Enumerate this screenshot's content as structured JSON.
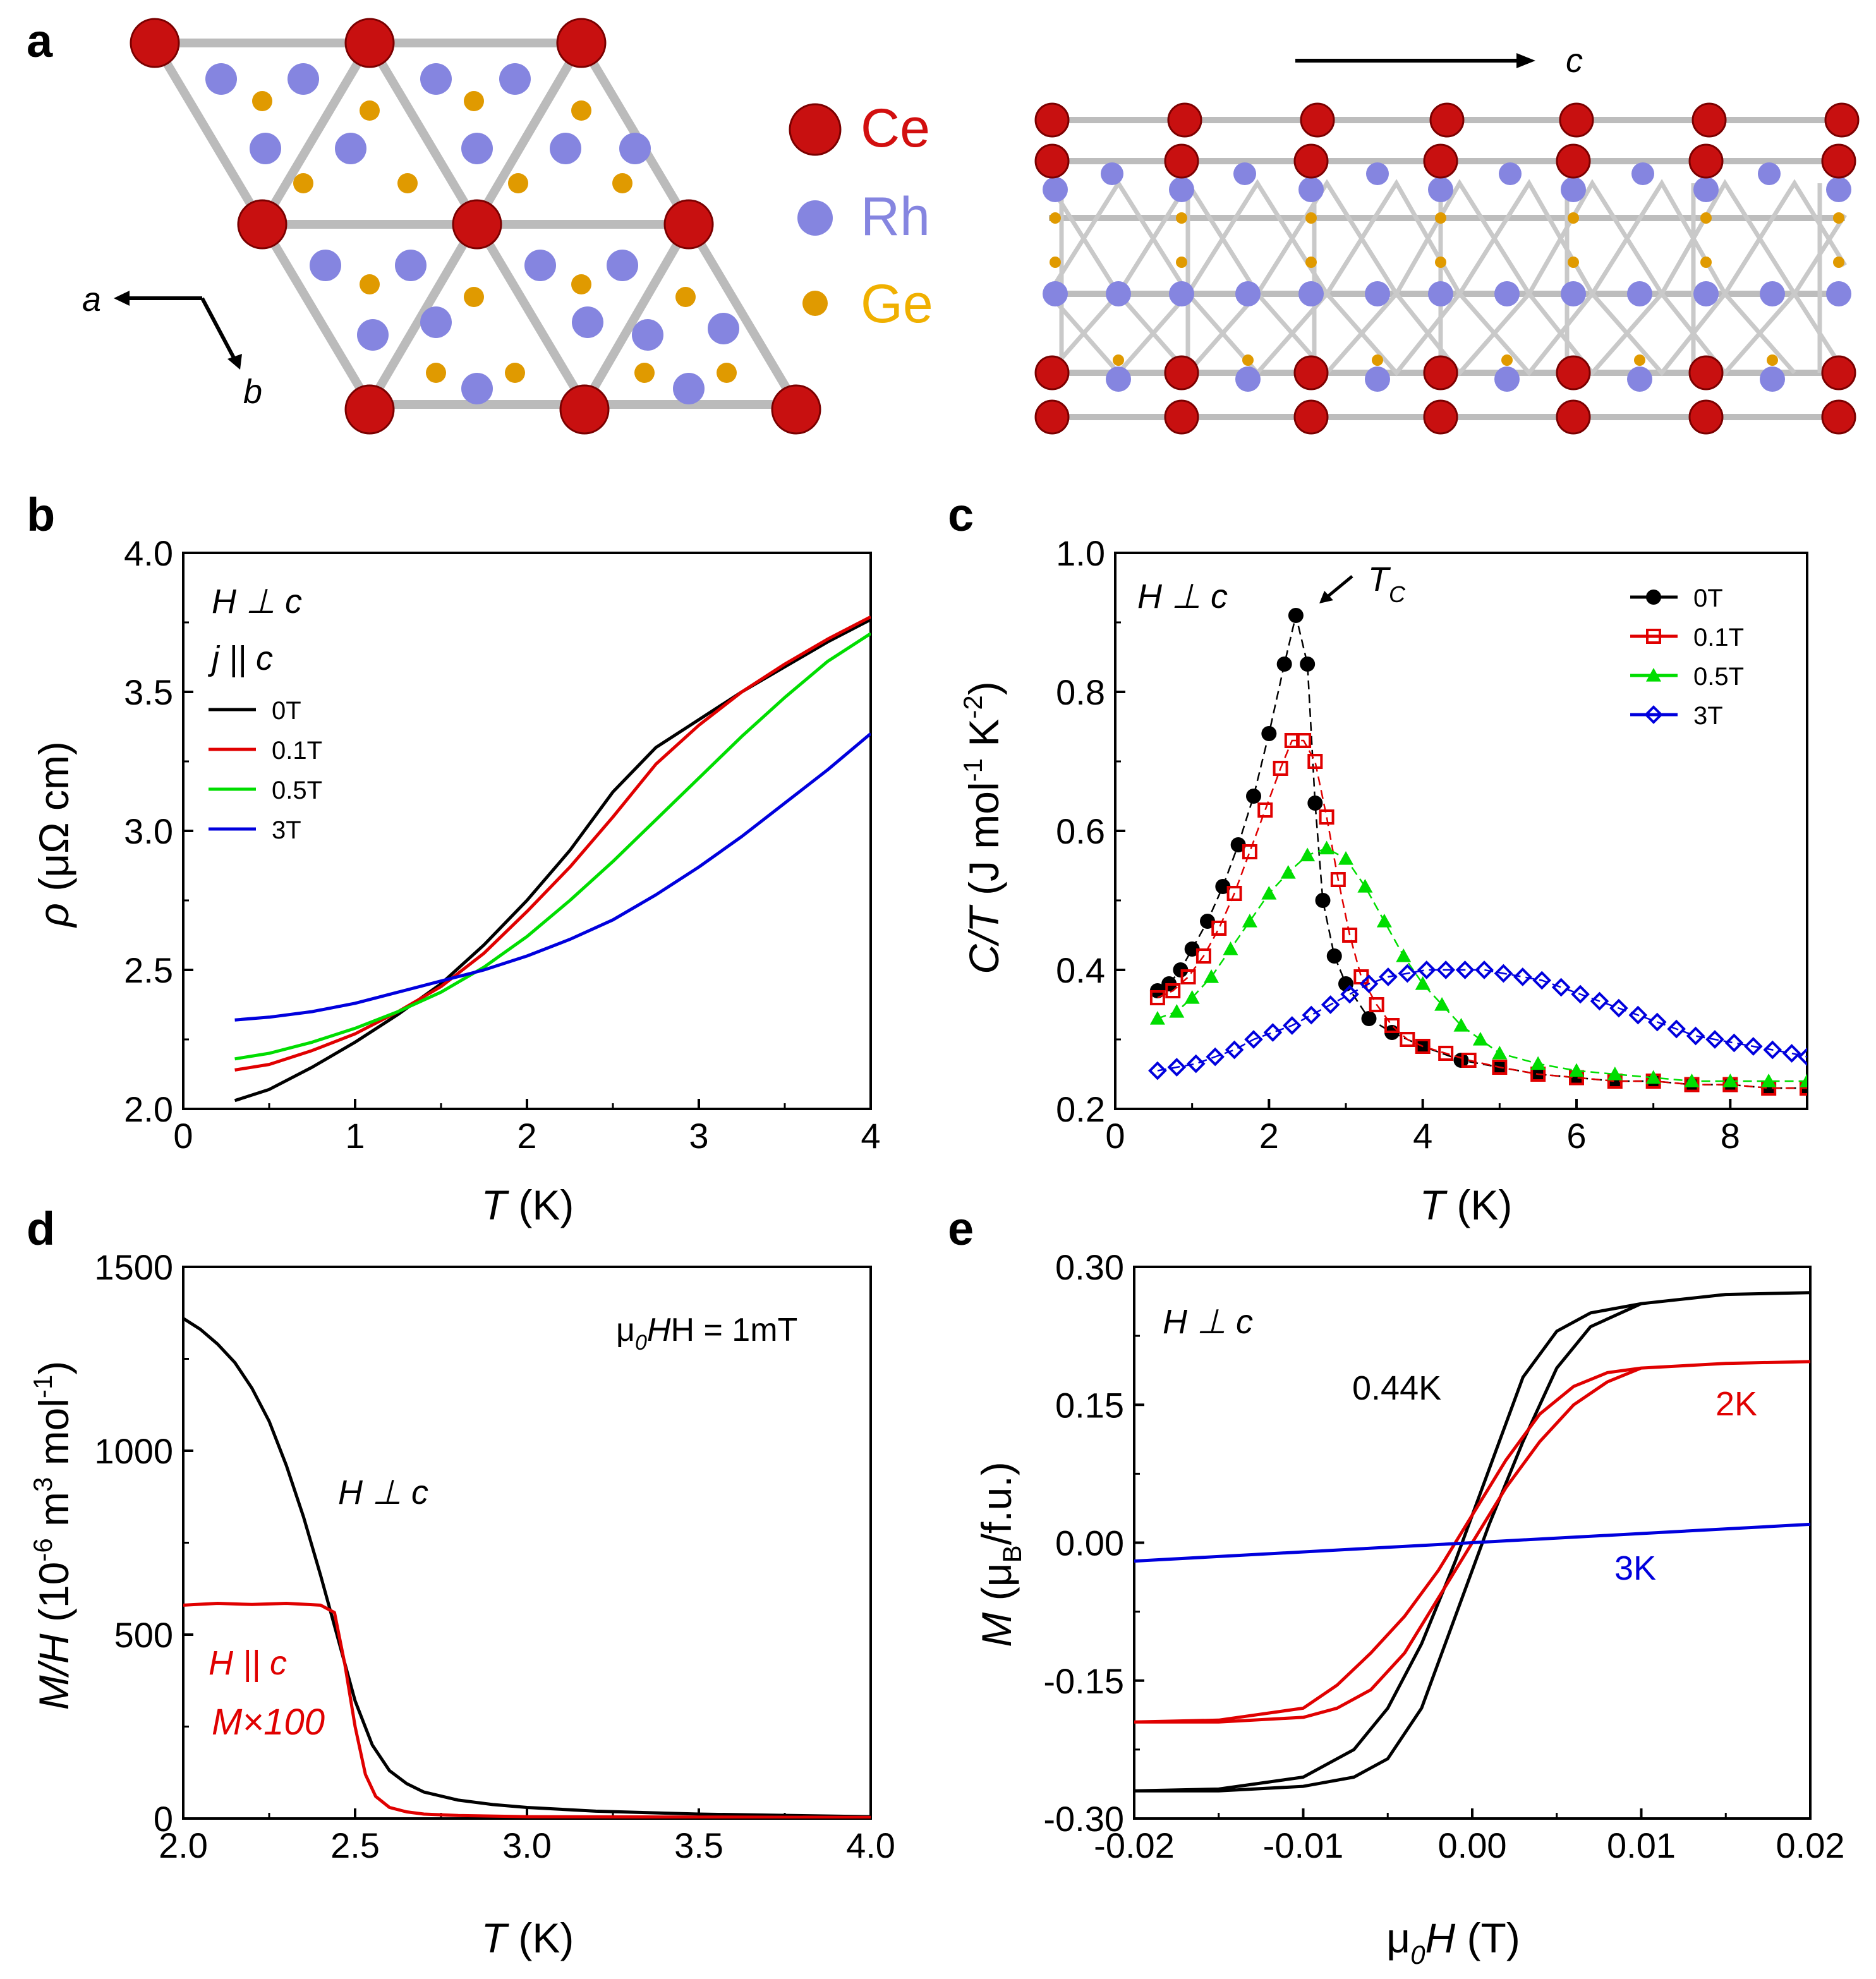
{
  "panels": {
    "a": {
      "label": "a",
      "structure_left": {
        "axis_a": "a",
        "axis_b": "b"
      },
      "structure_right": {
        "axis_c": "c"
      },
      "legend": [
        {
          "name": "Ce",
          "color": "#d20f0f"
        },
        {
          "name": "Rh",
          "color": "#8585e0"
        },
        {
          "name": "Ge",
          "color": "#f0b000"
        }
      ]
    },
    "b": {
      "label": "b",
      "annotation_1": "H ⊥ c",
      "annotation_2": "j || c"
    },
    "c": {
      "label": "c",
      "annotation_1": "H ⊥ c",
      "tc_label": "T",
      "tc_sub": "C"
    },
    "d": {
      "label": "d",
      "field_label": "μ",
      "field_sub": "0",
      "field_rest": "H = 1mT",
      "perp_label": "H ⊥ c",
      "par_label": "H || c",
      "scale_label": "M×100"
    },
    "e": {
      "label": "e",
      "annotation_1": "H ⊥ c"
    }
  },
  "chart_data": [
    {
      "id": "b",
      "type": "line",
      "xlabel_italic": "T",
      "xlabel_rest": " (K)",
      "ylabel_italic": "ρ",
      "ylabel_rest": " (μΩ cm)",
      "xlim": [
        0,
        4
      ],
      "ylim": [
        2.0,
        4.0
      ],
      "xticks": [
        0,
        1,
        2,
        3,
        4
      ],
      "xtick_labels": [
        "0",
        "1",
        "2",
        "3",
        "4"
      ],
      "yticks": [
        2.0,
        2.5,
        3.0,
        3.5,
        4.0
      ],
      "ytick_labels": [
        "2.0",
        "2.5",
        "3.0",
        "3.5",
        "4.0"
      ],
      "series": [
        {
          "name": "0T",
          "color": "#000000",
          "x": [
            0.3,
            0.5,
            0.75,
            1.0,
            1.25,
            1.5,
            1.75,
            2.0,
            2.25,
            2.5,
            2.75,
            3.0,
            3.25,
            3.5,
            3.75,
            4.0
          ],
          "y": [
            2.03,
            2.07,
            2.15,
            2.24,
            2.34,
            2.45,
            2.59,
            2.75,
            2.93,
            3.14,
            3.3,
            3.4,
            3.5,
            3.59,
            3.68,
            3.76
          ]
        },
        {
          "name": "0.1T",
          "color": "#e00000",
          "x": [
            0.3,
            0.5,
            0.75,
            1.0,
            1.25,
            1.5,
            1.75,
            2.0,
            2.25,
            2.5,
            2.75,
            3.0,
            3.25,
            3.5,
            3.75,
            4.0
          ],
          "y": [
            2.14,
            2.16,
            2.21,
            2.27,
            2.35,
            2.44,
            2.56,
            2.71,
            2.87,
            3.05,
            3.24,
            3.38,
            3.5,
            3.6,
            3.69,
            3.77
          ]
        },
        {
          "name": "0.5T",
          "color": "#00dd00",
          "x": [
            0.3,
            0.5,
            0.75,
            1.0,
            1.25,
            1.5,
            1.75,
            2.0,
            2.25,
            2.5,
            2.75,
            3.0,
            3.25,
            3.5,
            3.75,
            4.0
          ],
          "y": [
            2.18,
            2.2,
            2.24,
            2.29,
            2.35,
            2.42,
            2.51,
            2.62,
            2.75,
            2.89,
            3.04,
            3.19,
            3.34,
            3.48,
            3.61,
            3.71
          ]
        },
        {
          "name": "3T",
          "color": "#0000dd",
          "x": [
            0.3,
            0.5,
            0.75,
            1.0,
            1.25,
            1.5,
            1.75,
            2.0,
            2.25,
            2.5,
            2.75,
            3.0,
            3.25,
            3.5,
            3.75,
            4.0
          ],
          "y": [
            2.32,
            2.33,
            2.35,
            2.38,
            2.42,
            2.46,
            2.5,
            2.55,
            2.61,
            2.68,
            2.77,
            2.87,
            2.98,
            3.1,
            3.22,
            3.35
          ]
        }
      ]
    },
    {
      "id": "c",
      "type": "scatter",
      "xlabel_italic": "T",
      "xlabel_rest": " (K)",
      "ylabel_italic": "C/T",
      "ylabel_rest": " (J mol",
      "ylabel_sup1": "-1",
      "ylabel_mid": " K",
      "ylabel_sup2": "-2",
      "ylabel_end": ")",
      "xlim": [
        0,
        9
      ],
      "ylim": [
        0.2,
        1.0
      ],
      "xticks": [
        0,
        2,
        4,
        6,
        8
      ],
      "xtick_labels": [
        "0",
        "2",
        "4",
        "6",
        "8"
      ],
      "yticks": [
        0.2,
        0.4,
        0.6,
        0.8,
        1.0
      ],
      "ytick_labels": [
        "0.2",
        "0.4",
        "0.6",
        "0.8",
        "1.0"
      ],
      "series": [
        {
          "name": "0T",
          "color": "#000000",
          "marker": "circle",
          "x": [
            0.55,
            0.7,
            0.85,
            1.0,
            1.2,
            1.4,
            1.6,
            1.8,
            2.0,
            2.2,
            2.35,
            2.5,
            2.6,
            2.7,
            2.85,
            3.0,
            3.3,
            3.6,
            4.0,
            4.5,
            5.0,
            5.5,
            6.0,
            6.5,
            7.0,
            7.5,
            8.0,
            8.5,
            9.0
          ],
          "y": [
            0.37,
            0.38,
            0.4,
            0.43,
            0.47,
            0.52,
            0.58,
            0.65,
            0.74,
            0.84,
            0.91,
            0.84,
            0.64,
            0.5,
            0.42,
            0.38,
            0.33,
            0.31,
            0.29,
            0.27,
            0.26,
            0.25,
            0.245,
            0.24,
            0.24,
            0.235,
            0.235,
            0.23,
            0.23
          ]
        },
        {
          "name": "0.1T",
          "color": "#e00000",
          "marker": "square-open",
          "x": [
            0.55,
            0.75,
            0.95,
            1.15,
            1.35,
            1.55,
            1.75,
            1.95,
            2.15,
            2.3,
            2.45,
            2.6,
            2.75,
            2.9,
            3.05,
            3.2,
            3.4,
            3.6,
            3.8,
            4.0,
            4.3,
            4.6,
            5.0,
            5.5,
            6.0,
            6.5,
            7.0,
            7.5,
            8.0,
            8.5,
            9.0
          ],
          "y": [
            0.36,
            0.37,
            0.39,
            0.42,
            0.46,
            0.51,
            0.57,
            0.63,
            0.69,
            0.73,
            0.73,
            0.7,
            0.62,
            0.53,
            0.45,
            0.39,
            0.35,
            0.32,
            0.3,
            0.29,
            0.28,
            0.27,
            0.26,
            0.25,
            0.245,
            0.24,
            0.24,
            0.235,
            0.235,
            0.23,
            0.23
          ]
        },
        {
          "name": "0.5T",
          "color": "#00dd00",
          "marker": "triangle",
          "x": [
            0.55,
            0.8,
            1.0,
            1.25,
            1.5,
            1.75,
            2.0,
            2.25,
            2.5,
            2.75,
            3.0,
            3.25,
            3.5,
            3.75,
            4.0,
            4.25,
            4.5,
            4.75,
            5.0,
            5.5,
            6.0,
            6.5,
            7.0,
            7.5,
            8.0,
            8.5,
            9.0
          ],
          "y": [
            0.33,
            0.34,
            0.36,
            0.39,
            0.43,
            0.47,
            0.51,
            0.54,
            0.565,
            0.575,
            0.56,
            0.52,
            0.47,
            0.42,
            0.38,
            0.35,
            0.32,
            0.3,
            0.28,
            0.265,
            0.255,
            0.25,
            0.245,
            0.24,
            0.24,
            0.24,
            0.24
          ]
        },
        {
          "name": "3T",
          "color": "#0000dd",
          "marker": "diamond-open",
          "x": [
            0.55,
            0.8,
            1.05,
            1.3,
            1.55,
            1.8,
            2.05,
            2.3,
            2.55,
            2.8,
            3.05,
            3.3,
            3.55,
            3.8,
            4.05,
            4.3,
            4.55,
            4.8,
            5.05,
            5.3,
            5.55,
            5.8,
            6.05,
            6.3,
            6.55,
            6.8,
            7.05,
            7.3,
            7.55,
            7.8,
            8.05,
            8.3,
            8.55,
            8.8,
            9.0
          ],
          "y": [
            0.255,
            0.26,
            0.265,
            0.275,
            0.285,
            0.3,
            0.31,
            0.32,
            0.335,
            0.35,
            0.365,
            0.38,
            0.39,
            0.395,
            0.4,
            0.4,
            0.4,
            0.4,
            0.395,
            0.39,
            0.385,
            0.375,
            0.365,
            0.355,
            0.345,
            0.335,
            0.325,
            0.315,
            0.305,
            0.3,
            0.295,
            0.29,
            0.285,
            0.28,
            0.275
          ]
        }
      ]
    },
    {
      "id": "d",
      "type": "line",
      "xlabel_italic": "T",
      "xlabel_rest": " (K)",
      "ylabel_italic": "M/H",
      "ylabel_rest": " (10",
      "ylabel_sup1": "-6",
      "ylabel_mid": " m",
      "ylabel_sup2": "3",
      "ylabel_end": " mol",
      "ylabel_sup3": "-1",
      "ylabel_close": ")",
      "xlim": [
        2.0,
        4.0
      ],
      "ylim": [
        0,
        1500
      ],
      "xticks": [
        2.0,
        2.5,
        3.0,
        3.5,
        4.0
      ],
      "xtick_labels": [
        "2.0",
        "2.5",
        "3.0",
        "3.5",
        "4.0"
      ],
      "yticks": [
        0,
        500,
        1000,
        1500
      ],
      "ytick_labels": [
        "0",
        "500",
        "1000",
        "1500"
      ],
      "series": [
        {
          "name": "H ⊥ c",
          "color": "#000000",
          "x": [
            2.0,
            2.05,
            2.1,
            2.15,
            2.2,
            2.25,
            2.3,
            2.35,
            2.4,
            2.45,
            2.5,
            2.55,
            2.6,
            2.65,
            2.7,
            2.8,
            2.9,
            3.0,
            3.2,
            3.5,
            4.0
          ],
          "y": [
            1360,
            1330,
            1290,
            1240,
            1170,
            1080,
            960,
            820,
            660,
            490,
            320,
            200,
            130,
            95,
            72,
            50,
            38,
            30,
            20,
            12,
            5
          ]
        },
        {
          "name": "H || c  M×100",
          "color": "#e00000",
          "x": [
            2.0,
            2.1,
            2.2,
            2.3,
            2.4,
            2.44,
            2.47,
            2.5,
            2.53,
            2.56,
            2.6,
            2.65,
            2.7,
            2.8,
            3.0,
            3.5,
            4.0
          ],
          "y": [
            580,
            585,
            582,
            585,
            580,
            560,
            420,
            250,
            120,
            60,
            30,
            18,
            12,
            8,
            5,
            4,
            3
          ]
        }
      ]
    },
    {
      "id": "e",
      "type": "line",
      "xlabel_pre": "μ",
      "xlabel_sub": "0",
      "xlabel_italic": "H",
      "xlabel_rest": " (T)",
      "ylabel_italic": "M",
      "ylabel_rest": " (μ",
      "ylabel_sub": "B",
      "ylabel_end": "/f.u.)",
      "xlim": [
        -0.02,
        0.02
      ],
      "ylim": [
        -0.3,
        0.3
      ],
      "xticks": [
        -0.02,
        -0.01,
        0.0,
        0.01,
        0.02
      ],
      "xtick_labels": [
        "-0.02",
        "-0.01",
        "0.00",
        "0.01",
        "0.02"
      ],
      "yticks": [
        -0.3,
        -0.15,
        0.0,
        0.15,
        0.3
      ],
      "ytick_labels": [
        "-0.30",
        "-0.15",
        "0.00",
        "0.15",
        "0.30"
      ],
      "series": [
        {
          "name": "0.44K",
          "color": "#000000",
          "x": [
            -0.02,
            -0.015,
            -0.01,
            -0.007,
            -0.005,
            -0.003,
            -0.001,
            0.001,
            0.003,
            0.005,
            0.007,
            0.01,
            0.015,
            0.02,
            0.02,
            0.015,
            0.01,
            0.007,
            0.005,
            0.003,
            0.001,
            -0.001,
            -0.003,
            -0.005,
            -0.007,
            -0.01,
            -0.015,
            -0.02
          ],
          "y": [
            -0.27,
            -0.27,
            -0.265,
            -0.255,
            -0.235,
            -0.18,
            -0.08,
            0.02,
            0.11,
            0.19,
            0.235,
            0.26,
            0.27,
            0.272,
            0.272,
            0.27,
            0.26,
            0.25,
            0.23,
            0.18,
            0.08,
            -0.02,
            -0.11,
            -0.18,
            -0.225,
            -0.255,
            -0.268,
            -0.27
          ]
        },
        {
          "name": "2K",
          "color": "#e00000",
          "x": [
            -0.02,
            -0.015,
            -0.01,
            -0.008,
            -0.006,
            -0.004,
            -0.002,
            0.0,
            0.002,
            0.004,
            0.006,
            0.008,
            0.01,
            0.015,
            0.02,
            0.02,
            0.015,
            0.01,
            0.008,
            0.006,
            0.004,
            0.002,
            0.0,
            -0.002,
            -0.004,
            -0.006,
            -0.008,
            -0.01,
            -0.015,
            -0.02
          ],
          "y": [
            -0.195,
            -0.195,
            -0.19,
            -0.18,
            -0.16,
            -0.12,
            -0.06,
            0.0,
            0.06,
            0.11,
            0.15,
            0.175,
            0.19,
            0.195,
            0.197,
            0.197,
            0.195,
            0.19,
            0.185,
            0.17,
            0.14,
            0.09,
            0.03,
            -0.03,
            -0.08,
            -0.12,
            -0.155,
            -0.18,
            -0.193,
            -0.195
          ]
        },
        {
          "name": "3K",
          "color": "#0000dd",
          "x": [
            -0.02,
            0.02
          ],
          "y": [
            -0.02,
            0.02
          ]
        }
      ]
    }
  ]
}
